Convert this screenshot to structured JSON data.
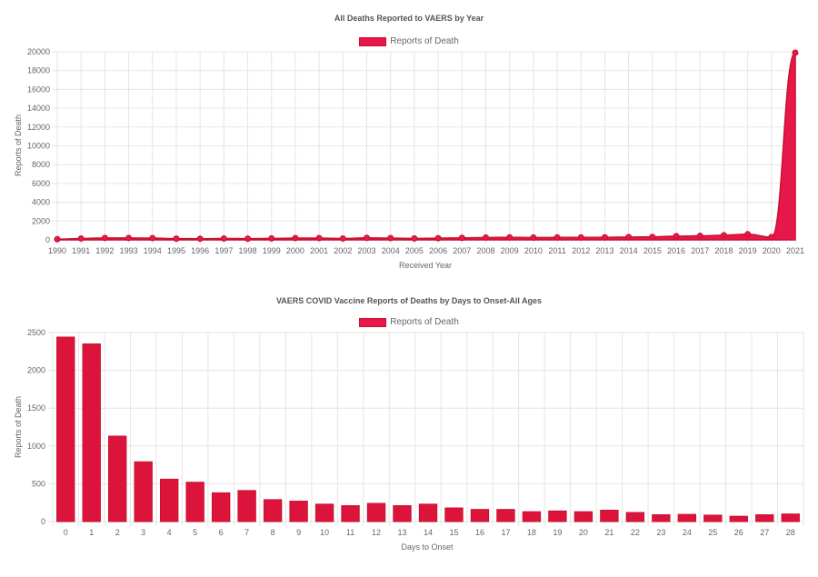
{
  "colors": {
    "fill": "#e8174a",
    "stroke": "#c8102e",
    "grid": "#e5e5e5",
    "tick_text": "#666666"
  },
  "chart_data": [
    {
      "type": "area",
      "title": "All Deaths Reported to VAERS by Year",
      "xlabel": "Received Year",
      "ylabel": "Reports of Death",
      "ylim": [
        0,
        20000
      ],
      "yticks": [
        0,
        2000,
        4000,
        6000,
        8000,
        10000,
        12000,
        14000,
        16000,
        18000,
        20000
      ],
      "yticks_text": [
        "0",
        "2000",
        "4000",
        "6000",
        "8000",
        "10000",
        "12000",
        "14000",
        "16000",
        "18000",
        "20000"
      ],
      "grid": true,
      "legend_position": "top-center",
      "categories": [
        "1990",
        "1991",
        "1992",
        "1993",
        "1994",
        "1995",
        "1996",
        "1997",
        "1998",
        "1999",
        "2000",
        "2001",
        "2002",
        "2003",
        "2004",
        "2005",
        "2006",
        "2007",
        "2008",
        "2009",
        "2010",
        "2011",
        "2012",
        "2013",
        "2014",
        "2015",
        "2016",
        "2017",
        "2018",
        "2019",
        "2020",
        "2021"
      ],
      "series": [
        {
          "name": "Reports of Death",
          "values": [
            70,
            150,
            210,
            200,
            190,
            130,
            125,
            150,
            130,
            160,
            190,
            190,
            150,
            220,
            190,
            160,
            180,
            220,
            250,
            270,
            250,
            260,
            260,
            280,
            300,
            320,
            400,
            430,
            500,
            600,
            300,
            19900
          ]
        }
      ]
    },
    {
      "type": "bar",
      "title": "VAERS COVID Vaccine Reports of Deaths by Days to Onset-All Ages",
      "xlabel": "Days to Onset",
      "ylabel": "Reports of Death",
      "ylim": [
        0,
        2500
      ],
      "yticks": [
        0,
        500,
        1000,
        1500,
        2000,
        2500
      ],
      "yticks_text": [
        "0",
        "500",
        "1000",
        "1500",
        "2000",
        "2500"
      ],
      "grid": true,
      "legend_position": "top-center",
      "categories": [
        "0",
        "1",
        "2",
        "3",
        "4",
        "5",
        "6",
        "7",
        "8",
        "9",
        "10",
        "11",
        "12",
        "13",
        "14",
        "15",
        "16",
        "17",
        "18",
        "19",
        "20",
        "21",
        "22",
        "23",
        "24",
        "25",
        "26",
        "27",
        "28"
      ],
      "series": [
        {
          "name": "Reports of Death",
          "values": [
            2440,
            2350,
            1130,
            790,
            560,
            520,
            380,
            410,
            290,
            270,
            230,
            210,
            240,
            210,
            230,
            180,
            160,
            160,
            130,
            140,
            130,
            150,
            120,
            90,
            95,
            85,
            70,
            90,
            100
          ]
        }
      ]
    }
  ]
}
